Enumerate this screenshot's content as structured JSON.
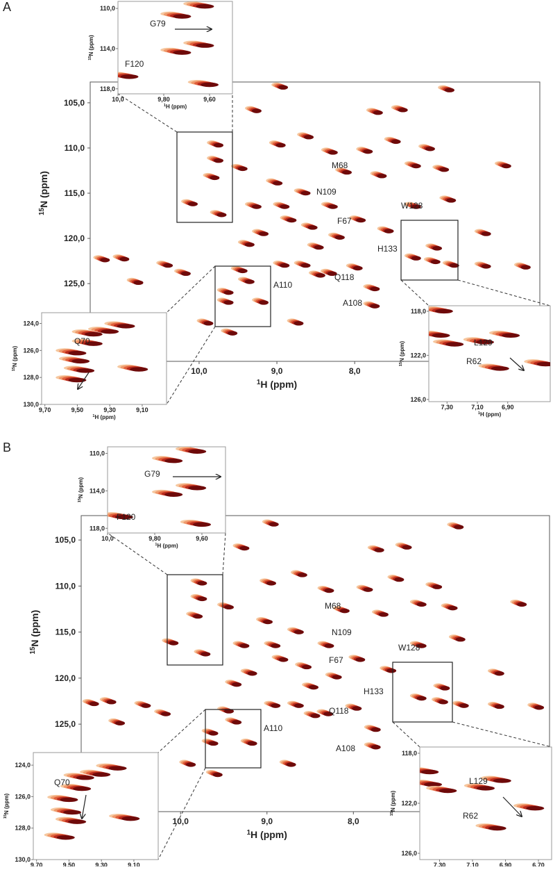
{
  "panels": [
    {
      "label": "A",
      "main": {
        "type": "scatter",
        "xlabel": {
          "sup": "1",
          "text": "H (ppm)"
        },
        "ylabel": {
          "sup": "15",
          "text": "N (ppm)"
        },
        "xlim": [
          11.4,
          5.62
        ],
        "ylim": [
          102.7,
          133.6
        ],
        "xticks": [
          {
            "value": 10,
            "label": "10,0"
          },
          {
            "value": 9,
            "label": "9,0"
          },
          {
            "value": 8,
            "label": "8,0"
          }
        ],
        "yticks": [
          {
            "value": 105,
            "label": "105,0"
          },
          {
            "value": 110,
            "label": "110,0"
          },
          {
            "value": 115,
            "label": "115,0"
          },
          {
            "value": 120,
            "label": "120,0"
          },
          {
            "value": 125,
            "label": "125,0"
          }
        ],
        "peaks": {
          "x": [
            9.75,
            9.75,
            9.8,
            10.08,
            9.71,
            11.21,
            10.96,
            10.4,
            10.78,
            10.17,
            9.44,
            9.62,
            9.62,
            9.17,
            9.35,
            8.9,
            8.63,
            8.44,
            8.29,
            7.96,
            7.74,
            7.74,
            7.21,
            6.96,
            6.94,
            6.72,
            6.31,
            5.8,
            6.78,
            8.92,
            9.26,
            7.7,
            7.38,
            8.95,
            8.59,
            8.28,
            7.83,
            7.47,
            7.03,
            9.44,
            8.99,
            8.63,
            8.9,
            9.26,
            8.1,
            7.65,
            7.21,
            6.85,
            8.28,
            7.92,
            7.56,
            8.54,
            8.81,
            9.17,
            8.19,
            7.21,
            6.76,
            6.31,
            6.05,
            8.46,
            9.35,
            8.72,
            9.57,
            9.88
          ],
          "y": [
            109.7,
            111.4,
            113.3,
            116.2,
            117.4,
            122.4,
            122.3,
            123,
            124.9,
            123.9,
            123.6,
            126,
            127.1,
            127.1,
            124.8,
            123,
            123,
            124.1,
            123.9,
            123.3,
            125.6,
            127.5,
            122.2,
            122.6,
            121.1,
            123,
            123.1,
            123.2,
            103.6,
            103.3,
            105.9,
            106.1,
            105.8,
            109.7,
            108.8,
            110.5,
            110.4,
            109.3,
            110.1,
            112.3,
            113.9,
            115,
            116.5,
            116.5,
            112.7,
            113.1,
            112,
            112.4,
            116.5,
            118,
            119.2,
            118.8,
            118,
            119.5,
            119.9,
            116.5,
            115.8,
            119.5,
            112,
            121,
            120.7,
            129.4,
            130.5,
            129.4
          ]
        },
        "annotations": [
          "M68",
          "N109",
          "F67",
          "W128",
          "H133",
          "Q118",
          "A110",
          "A108"
        ]
      },
      "insets": [
        {
          "xlabel": {
            "sup": "1",
            "text": "H (ppm)"
          },
          "ylabel": {
            "sup": "15",
            "text": "N (ppm)"
          },
          "xlim": [
            10.0,
            9.5
          ],
          "ylim": [
            109.3,
            118.5
          ],
          "xticks": [
            {
              "value": 10,
              "label": "10,0"
            },
            {
              "value": 9.8,
              "label": "9,80"
            },
            {
              "value": 9.6,
              "label": "9,60"
            }
          ],
          "yticks": [
            {
              "value": 110,
              "label": "110,0"
            },
            {
              "value": 114,
              "label": "114,0"
            },
            {
              "value": 118,
              "label": "118,0"
            }
          ],
          "peaks": {
            "x": [
              9.62,
              9.72,
              9.62,
              9.72,
              9.95,
              9.6
            ],
            "y": [
              109.8,
              110.8,
              113.7,
              114.4,
              116.8,
              117.6
            ]
          },
          "annotations": [
            "G79",
            "F120"
          ]
        },
        {
          "xlabel": {
            "sup": "1",
            "text": "H (ppm)"
          },
          "ylabel": {
            "sup": "15",
            "text": "N (ppm)"
          },
          "xlim": [
            9.72,
            8.95
          ],
          "ylim": [
            123.2,
            130.0
          ],
          "xticks": [
            {
              "value": 9.7,
              "label": "9,70"
            },
            {
              "value": 9.5,
              "label": "9,50"
            },
            {
              "value": 9.3,
              "label": "9,30"
            },
            {
              "value": 9.1,
              "label": "9,10"
            }
          ],
          "yticks": [
            {
              "value": 124,
              "label": "124,0"
            },
            {
              "value": 126,
              "label": "126,0"
            },
            {
              "value": 128,
              "label": "128,0"
            },
            {
              "value": 130,
              "label": "130,0"
            }
          ],
          "peaks": {
            "x": [
              9.2,
              9.3,
              9.4,
              9.5,
              9.48,
              9.45,
              9.5,
              9.12,
              9.4
            ],
            "y": [
              124.2,
              124.6,
              125.5,
              126.2,
              126.8,
              127.5,
              128.2,
              127.4,
              124.8
            ]
          },
          "annotations": [
            "Q70"
          ]
        },
        {
          "xlabel": {
            "sup": "1",
            "text": "H (ppm)"
          },
          "ylabel": {
            "sup": "15",
            "text": "N (ppm)"
          },
          "xlim": [
            7.42,
            6.62
          ],
          "ylim": [
            117.5,
            126.2
          ],
          "xticks": [
            {
              "value": 7.3,
              "label": "7,30"
            },
            {
              "value": 7.1,
              "label": "7,10"
            },
            {
              "value": 6.9,
              "label": "6,90"
            }
          ],
          "yticks": [
            {
              "value": 118,
              "label": "118,0"
            },
            {
              "value": 122,
              "label": "122,0"
            },
            {
              "value": 126,
              "label": "126,0"
            }
          ],
          "peaks": {
            "x": [
              7.32,
              7.34,
              7.25,
              7.05,
              6.88,
              6.95,
              6.65
            ],
            "y": [
              118.0,
              120.2,
              121.0,
              120.8,
              120.2,
              123.2,
              122.8
            ]
          },
          "annotations": [
            "L129",
            "R62"
          ]
        }
      ]
    },
    {
      "label": "B",
      "main": {
        "type": "scatter",
        "xlabel": {
          "sup": "1",
          "text": "H (ppm)"
        },
        "ylabel": {
          "sup": "15",
          "text": "N (ppm)"
        },
        "xlim": [
          11.15,
          5.73
        ],
        "ylim": [
          102.35,
          134.5
        ],
        "xticks": [
          {
            "value": 10,
            "label": "10,0"
          },
          {
            "value": 9,
            "label": "9,0"
          },
          {
            "value": 8,
            "label": "8,0"
          }
        ],
        "yticks": [
          {
            "value": 105,
            "label": "105,0"
          },
          {
            "value": 110,
            "label": "110,0"
          },
          {
            "value": 115,
            "label": "115,0"
          },
          {
            "value": 120,
            "label": "120,0"
          },
          {
            "value": 125,
            "label": "125,0"
          }
        ],
        "peaks": {
          "x": [
            9.75,
            9.75,
            9.8,
            10.08,
            9.71,
            11.0,
            10.8,
            10.4,
            10.7,
            10.17,
            9.44,
            9.62,
            9.62,
            9.17,
            9.35,
            8.9,
            8.63,
            8.44,
            8.29,
            7.96,
            7.74,
            7.74,
            7.21,
            6.96,
            6.94,
            6.72,
            6.31,
            5.85,
            6.78,
            8.92,
            9.26,
            7.7,
            7.38,
            8.95,
            8.59,
            8.28,
            7.83,
            7.47,
            7.03,
            9.44,
            8.99,
            8.63,
            8.9,
            9.26,
            8.1,
            7.65,
            7.21,
            6.85,
            8.28,
            7.92,
            7.56,
            8.54,
            8.81,
            9.17,
            8.19,
            7.21,
            6.76,
            6.31,
            6.05,
            8.46,
            9.35,
            8.72,
            9.57,
            9.88
          ],
          "y": [
            109.7,
            111.4,
            113.3,
            116.2,
            117.4,
            122.8,
            122.6,
            123,
            124.9,
            123.9,
            123.6,
            126,
            127.1,
            127.1,
            124.8,
            123,
            123,
            124.1,
            123.9,
            123.3,
            125.6,
            127.5,
            122.2,
            122.6,
            121.1,
            123,
            123.1,
            123.2,
            103.6,
            103.3,
            105.9,
            106.1,
            105.8,
            109.7,
            108.8,
            110.5,
            110.4,
            109.3,
            110.1,
            112.3,
            113.9,
            115,
            116.5,
            116.5,
            112.7,
            113.1,
            112,
            112.4,
            116.5,
            118,
            119.2,
            118.8,
            118,
            119.5,
            119.9,
            116.5,
            115.8,
            119.5,
            112,
            121,
            120.7,
            129.4,
            130.5,
            129.4
          ]
        },
        "annotations": [
          "M68",
          "N109",
          "F67",
          "W128",
          "H133",
          "Q118",
          "A110",
          "A108"
        ]
      },
      "insets": [
        {
          "xlabel": {
            "sup": "1",
            "text": "H (ppm)"
          },
          "ylabel": {
            "sup": "15",
            "text": "N (ppm)"
          },
          "xlim": [
            10.0,
            9.5
          ],
          "ylim": [
            109.3,
            118.5
          ],
          "xticks": [
            {
              "value": 10,
              "label": "10,0"
            },
            {
              "value": 9.8,
              "label": "9,80"
            },
            {
              "value": 9.6,
              "label": "9,60"
            }
          ],
          "yticks": [
            {
              "value": 110,
              "label": "110,0"
            },
            {
              "value": 114,
              "label": "114,0"
            },
            {
              "value": 118,
              "label": "118,0"
            }
          ],
          "peaks": {
            "x": [
              9.62,
              9.72,
              9.62,
              9.72,
              9.93,
              9.6
            ],
            "y": [
              109.8,
              110.8,
              113.7,
              114.4,
              116.8,
              117.6
            ]
          },
          "annotations": [
            "G79",
            "F120"
          ]
        },
        {
          "xlabel": {
            "sup": "1",
            "text": "H (ppm)"
          },
          "ylabel": {
            "sup": "15",
            "text": "N (ppm)"
          },
          "xlim": [
            9.72,
            8.95
          ],
          "ylim": [
            123.2,
            130.0
          ],
          "xticks": [
            {
              "value": 9.7,
              "label": "9,70"
            },
            {
              "value": 9.5,
              "label": "9,50"
            },
            {
              "value": 9.3,
              "label": "9,30"
            },
            {
              "value": 9.1,
              "label": "9,10"
            }
          ],
          "yticks": [
            {
              "value": 124,
              "label": "124,0"
            },
            {
              "value": 126,
              "label": "126,0"
            },
            {
              "value": 128,
              "label": "128,0"
            },
            {
              "value": 130,
              "label": "130,0"
            }
          ],
          "peaks": {
            "x": [
              9.2,
              9.3,
              9.42,
              9.5,
              9.48,
              9.45,
              9.52,
              9.12,
              9.4
            ],
            "y": [
              124.2,
              124.6,
              125.5,
              126.2,
              127.0,
              127.6,
              128.6,
              127.4,
              124.8
            ]
          },
          "annotations": [
            "Q70"
          ]
        },
        {
          "xlabel": {
            "sup": "1",
            "text": "H (ppm)"
          },
          "ylabel": {
            "sup": "15",
            "text": "N (ppm)"
          },
          "xlim": [
            7.42,
            6.62
          ],
          "ylim": [
            117.5,
            126.5
          ],
          "xticks": [
            {
              "value": 7.3,
              "label": "7,30"
            },
            {
              "value": 7.1,
              "label": "7,10"
            },
            {
              "value": 6.9,
              "label": "6,90"
            },
            {
              "value": 6.7,
              "label": "6,70"
            }
          ],
          "yticks": [
            {
              "value": 118,
              "label": "118,0"
            },
            {
              "value": 122,
              "label": "122,0"
            },
            {
              "value": 126,
              "label": "126,0"
            }
          ],
          "peaks": {
            "x": [
              7.36,
              7.34,
              7.25,
              7.02,
              6.92,
              6.95,
              6.72
            ],
            "y": [
              119.5,
              120.5,
              121.0,
              120.8,
              120.2,
              124.0,
              122.4
            ]
          },
          "annotations": [
            "L129",
            "R62"
          ]
        }
      ]
    }
  ]
}
